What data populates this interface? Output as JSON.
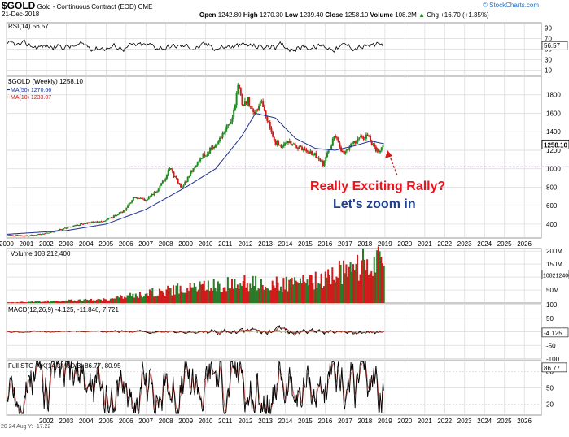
{
  "header": {
    "symbol": "$GOLD",
    "name": "Gold - Continuous Contract (EOD)",
    "exchange": "CME",
    "date": "21-Dec-2018",
    "open_label": "Open",
    "open": "1242.80",
    "high_label": "High",
    "high": "1270.30",
    "low_label": "Low",
    "low": "1239.40",
    "close_label": "Close",
    "close": "1258.10",
    "volume_label": "Volume",
    "volume": "108.2M",
    "change": "Chg +16.70 (+1.35%)",
    "change_arrow": "▲",
    "watermark": "© StockCharts.com"
  },
  "annotations": {
    "line1": "Really Exciting Rally?",
    "line2": "Let's zoom in",
    "line1_color": "#e8141e",
    "line2_color": "#1f3f8f"
  },
  "footer_left": "20 24 Aug  Y: -17.22",
  "colors": {
    "up": "#1f8a1f",
    "down": "#d11a1a",
    "ma50": "#1a2f8f",
    "ma10": "#d11a1a",
    "support": "#8b1fbf",
    "grid": "#d9d9d9",
    "panel_bg": "#ffffff"
  },
  "chart_data": [
    {
      "type": "line",
      "panel": "rsi",
      "title": "RSI(14) 56.57",
      "ticks": [
        10,
        30,
        50,
        70,
        90
      ],
      "current": "56.57",
      "ylim": [
        0,
        100
      ]
    },
    {
      "type": "candlestick",
      "panel": "price",
      "title": "$GOLD (Weekly) 1258.10",
      "x_labels": [
        "2000",
        "2001",
        "2002",
        "2003",
        "2004",
        "2005",
        "2006",
        "2007",
        "2008",
        "2009",
        "2010",
        "2011",
        "2012",
        "2013",
        "2014",
        "2015",
        "2016",
        "2017",
        "2018",
        "2019",
        "2020",
        "2021",
        "2022",
        "2023",
        "2024",
        "2025",
        "2026"
      ],
      "y_ticks": [
        400,
        600,
        800,
        1000,
        1200,
        1400,
        1600,
        1800
      ],
      "ylim": [
        250,
        2000
      ],
      "current_label": "1258.10",
      "support_level": 1020,
      "annual_close": {
        "x": [
          2000,
          2001,
          2002,
          2003,
          2004,
          2005,
          2006,
          2007,
          2008,
          2009,
          2010,
          2011,
          2012,
          2013,
          2014,
          2015,
          2016,
          2017,
          2018.95
        ],
        "y": [
          272,
          279,
          347,
          416,
          438,
          517,
          632,
          834,
          884,
          1096,
          1421,
          1565,
          1675,
          1204,
          1184,
          1061,
          1151,
          1303,
          1258
        ]
      },
      "path": {
        "x": [
          2000,
          2001,
          2002,
          2003,
          2004,
          2005,
          2006,
          2006.4,
          2007,
          2007.7,
          2008.2,
          2008.8,
          2009.2,
          2009.9,
          2010.5,
          2010.9,
          2011.3,
          2011.65,
          2011.85,
          2012.1,
          2012.4,
          2012.8,
          2013.2,
          2013.5,
          2013.9,
          2014.2,
          2014.9,
          2015.5,
          2015.9,
          2016.5,
          2016.9,
          2017.5,
          2018.1,
          2018.6,
          2018.95
        ],
        "y": [
          280,
          272,
          300,
          360,
          410,
          440,
          560,
          700,
          660,
          800,
          1000,
          780,
          950,
          1150,
          1250,
          1400,
          1500,
          1900,
          1650,
          1750,
          1580,
          1720,
          1450,
          1280,
          1250,
          1300,
          1200,
          1150,
          1050,
          1360,
          1150,
          1300,
          1360,
          1180,
          1258
        ]
      },
      "series": [
        {
          "name": "MA(50) 1270.66",
          "color": "#1a2f8f",
          "x": [
            2000,
            2003,
            2005,
            2007,
            2009,
            2010.5,
            2011.8,
            2012.5,
            2013.5,
            2014.5,
            2015.5,
            2016.5,
            2017.5,
            2018.3,
            2018.95
          ],
          "y": [
            290,
            330,
            400,
            560,
            800,
            1000,
            1350,
            1600,
            1550,
            1330,
            1220,
            1200,
            1250,
            1300,
            1270
          ]
        },
        {
          "name": "MA(10) 1233.07",
          "color": "#d11a1a",
          "x": [
            2000,
            2018.95
          ],
          "y": [
            280,
            1233
          ]
        }
      ]
    },
    {
      "type": "bar",
      "panel": "volume",
      "title": "Volume 108,212,400",
      "y_ticks": [
        "50M",
        "100M",
        "150M",
        "200M"
      ],
      "current_label": "108212400",
      "ylim": [
        0,
        210
      ],
      "trend": {
        "x": [
          2000,
          2005,
          2008,
          2010,
          2012,
          2014,
          2016,
          2017.5,
          2018.5
        ],
        "y": [
          2,
          15,
          50,
          70,
          80,
          75,
          95,
          150,
          170
        ]
      }
    },
    {
      "type": "line",
      "panel": "macd",
      "title": "MACD(12,26,9) -4.125, -11.846, 7.721",
      "y_ticks": [
        -100,
        -50,
        0,
        50,
        100
      ],
      "current_label": "-4.125",
      "ylim": [
        -100,
        100
      ]
    },
    {
      "type": "line",
      "panel": "sto",
      "title": "Full STO %K(14,3) %D(3) 86.77, 80.95",
      "y_ticks": [
        20,
        50,
        80
      ],
      "current_label": "86.77",
      "ylim": [
        0,
        100
      ]
    }
  ]
}
